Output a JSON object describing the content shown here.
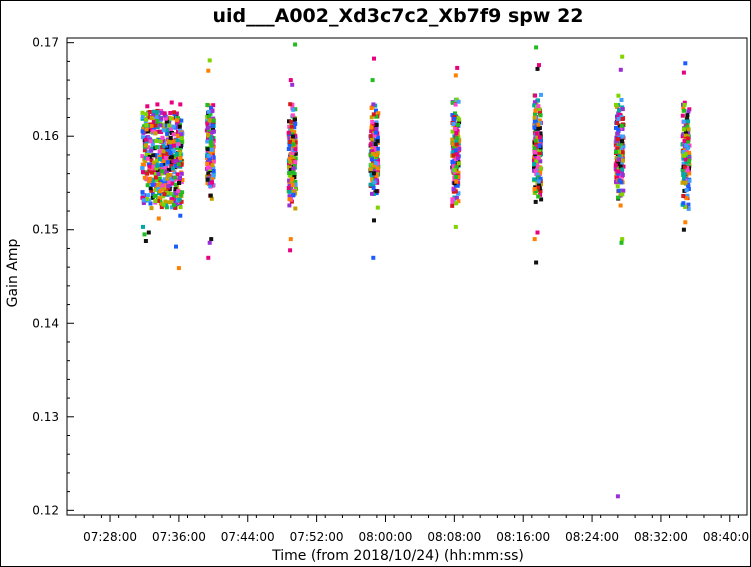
{
  "chart_data": {
    "type": "scatter",
    "title": "uid___A002_Xd3c7c2_Xb7f9 spw 22",
    "xlabel": "Time (from 2018/10/24) (hh:mm:ss)",
    "ylabel": "Gain Amp",
    "xlim": [
      "07:23:00",
      "08:42:00"
    ],
    "ylim": [
      0.1195,
      0.1705
    ],
    "x_ticks": [
      "07:28:00",
      "07:36:00",
      "07:44:00",
      "07:52:00",
      "08:00:00",
      "08:08:00",
      "08:16:00",
      "08:24:00",
      "08:32:00",
      "08:40:00"
    ],
    "y_ticks": [
      "0.12",
      "0.13",
      "0.14",
      "0.15",
      "0.16",
      "0.17"
    ],
    "grid": false,
    "legend": "none",
    "marker": "square",
    "palette": [
      "#e8007f",
      "#ff7f00",
      "#22bb22",
      "#1a5cff",
      "#9b2fd6",
      "#00a8a8",
      "#111111",
      "#7fd400",
      "#d41a1a",
      "#3fa0ff",
      "#c7a000",
      "#ff44cc"
    ],
    "scans": [
      {
        "start": "07:31:45",
        "end": "07:36:25",
        "core_low": 0.1525,
        "core_high": 0.1625,
        "outliers": [
          {
            "x": "07:31:50",
            "y": 0.1503,
            "c": 5
          },
          {
            "x": "07:32:00",
            "y": 0.1495,
            "c": 2
          },
          {
            "x": "07:32:10",
            "y": 0.1488,
            "c": 6
          },
          {
            "x": "07:32:30",
            "y": 0.1497,
            "c": 6
          },
          {
            "x": "07:33:40",
            "y": 0.1512,
            "c": 1
          },
          {
            "x": "07:35:40",
            "y": 0.1482,
            "c": 3
          },
          {
            "x": "07:36:00",
            "y": 0.1459,
            "c": 1
          },
          {
            "x": "07:36:10",
            "y": 0.1515,
            "c": 3
          },
          {
            "x": "07:32:20",
            "y": 0.1632,
            "c": 0
          },
          {
            "x": "07:33:30",
            "y": 0.1634,
            "c": 0
          },
          {
            "x": "07:35:10",
            "y": 0.1636,
            "c": 0
          },
          {
            "x": "07:36:10",
            "y": 0.1634,
            "c": 0
          }
        ]
      },
      {
        "start": "07:39:15",
        "end": "07:40:05",
        "core_low": 0.1525,
        "core_high": 0.164,
        "outliers": [
          {
            "x": "07:39:35",
            "y": 0.1681,
            "c": 7
          },
          {
            "x": "07:39:25",
            "y": 0.167,
            "c": 1
          },
          {
            "x": "07:39:45",
            "y": 0.149,
            "c": 6
          },
          {
            "x": "07:39:35",
            "y": 0.1486,
            "c": 4
          },
          {
            "x": "07:39:25",
            "y": 0.147,
            "c": 0
          }
        ]
      },
      {
        "start": "07:48:45",
        "end": "07:49:35",
        "core_low": 0.1515,
        "core_high": 0.1642,
        "outliers": [
          {
            "x": "07:49:30",
            "y": 0.1698,
            "c": 2
          },
          {
            "x": "07:49:00",
            "y": 0.166,
            "c": 0
          },
          {
            "x": "07:49:10",
            "y": 0.1655,
            "c": 4
          },
          {
            "x": "07:49:00",
            "y": 0.149,
            "c": 1
          },
          {
            "x": "07:48:55",
            "y": 0.1478,
            "c": 0
          }
        ]
      },
      {
        "start": "07:58:15",
        "end": "07:59:10",
        "core_low": 0.152,
        "core_high": 0.164,
        "outliers": [
          {
            "x": "07:58:40",
            "y": 0.1683,
            "c": 0
          },
          {
            "x": "07:58:30",
            "y": 0.166,
            "c": 2
          },
          {
            "x": "07:58:40",
            "y": 0.151,
            "c": 6
          },
          {
            "x": "07:58:35",
            "y": 0.147,
            "c": 3
          }
        ]
      },
      {
        "start": "08:07:45",
        "end": "08:08:35",
        "core_low": 0.1515,
        "core_high": 0.165,
        "outliers": [
          {
            "x": "08:08:20",
            "y": 0.1673,
            "c": 0
          },
          {
            "x": "08:08:10",
            "y": 0.1665,
            "c": 1
          },
          {
            "x": "08:08:10",
            "y": 0.1503,
            "c": 7
          }
        ]
      },
      {
        "start": "08:17:15",
        "end": "08:18:05",
        "core_low": 0.1525,
        "core_high": 0.165,
        "outliers": [
          {
            "x": "08:17:30",
            "y": 0.1695,
            "c": 2
          },
          {
            "x": "08:17:40",
            "y": 0.1672,
            "c": 6
          },
          {
            "x": "08:17:50",
            "y": 0.1676,
            "c": 0
          },
          {
            "x": "08:17:40",
            "y": 0.1497,
            "c": 0
          },
          {
            "x": "08:17:20",
            "y": 0.149,
            "c": 1
          },
          {
            "x": "08:17:30",
            "y": 0.1465,
            "c": 6
          }
        ]
      },
      {
        "start": "08:26:45",
        "end": "08:27:40",
        "core_low": 0.152,
        "core_high": 0.1645,
        "outliers": [
          {
            "x": "08:27:30",
            "y": 0.1685,
            "c": 7
          },
          {
            "x": "08:27:20",
            "y": 0.1671,
            "c": 4
          },
          {
            "x": "08:27:30",
            "y": 0.149,
            "c": 7
          },
          {
            "x": "08:27:25",
            "y": 0.1486,
            "c": 2
          },
          {
            "x": "08:27:00",
            "y": 0.1215,
            "c": 4
          }
        ]
      },
      {
        "start": "08:34:30",
        "end": "08:35:20",
        "core_low": 0.152,
        "core_high": 0.164,
        "outliers": [
          {
            "x": "08:34:50",
            "y": 0.1678,
            "c": 3
          },
          {
            "x": "08:34:40",
            "y": 0.1668,
            "c": 0
          },
          {
            "x": "08:34:50",
            "y": 0.1508,
            "c": 1
          },
          {
            "x": "08:34:40",
            "y": 0.15,
            "c": 6
          }
        ]
      }
    ]
  }
}
